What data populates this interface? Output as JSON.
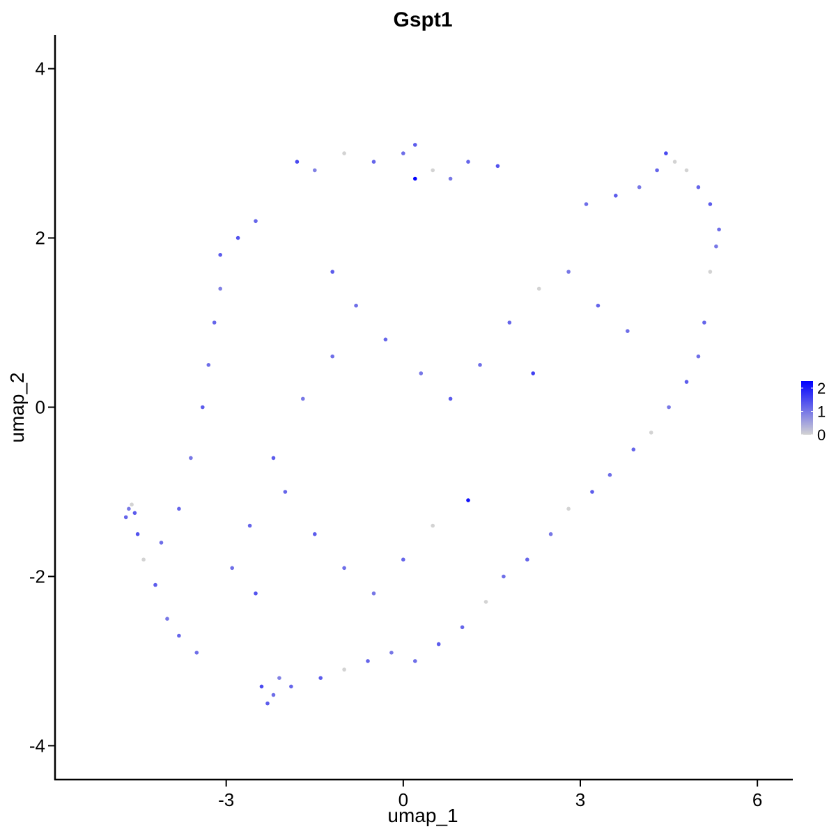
{
  "chart_data": {
    "type": "scatter",
    "title": "Gspt1",
    "xlabel": "umap_1",
    "ylabel": "umap_2",
    "xlim": [
      -5.9,
      6.6
    ],
    "ylim": [
      -4.4,
      4.4
    ],
    "xticks": [
      -3,
      0,
      3,
      6
    ],
    "yticks": [
      -4,
      -2,
      0,
      2,
      4
    ],
    "xtick_labels": [
      "-3",
      "0",
      "3",
      "6"
    ],
    "ytick_labels": [
      "-4",
      "-2",
      "0",
      "2",
      "4"
    ],
    "grid": false,
    "legend": {
      "placement": "right",
      "min": 0,
      "max": 2.3,
      "ticks": [
        0,
        1,
        2
      ],
      "tick_labels": [
        "0",
        "1",
        "2"
      ],
      "color_low": "#d3d3d3",
      "color_high": "#0000ff"
    },
    "points": [
      [
        0.2,
        2.7,
        2.3
      ],
      [
        1.1,
        -1.1,
        2.1
      ],
      [
        -4.7,
        -1.3,
        1.2
      ],
      [
        -4.65,
        -1.2,
        1.0
      ],
      [
        -4.6,
        -1.15,
        0.0
      ],
      [
        -4.55,
        -1.25,
        1.3
      ],
      [
        -4.5,
        -1.5,
        1.4
      ],
      [
        -4.4,
        -1.8,
        0.0
      ],
      [
        -2.3,
        -3.5,
        1.3
      ],
      [
        -2.2,
        -3.4,
        1.1
      ],
      [
        -2.4,
        -3.3,
        1.5
      ],
      [
        -2.1,
        -3.2,
        0.9
      ],
      [
        -1.9,
        -3.3,
        1.2
      ],
      [
        -3.1,
        1.8,
        1.3
      ],
      [
        -2.8,
        2.0,
        1.4
      ],
      [
        -2.5,
        2.2,
        1.2
      ],
      [
        -1.8,
        2.9,
        1.5
      ],
      [
        -1.5,
        2.8,
        0.9
      ],
      [
        -1.0,
        3.0,
        0.0
      ],
      [
        -0.5,
        2.9,
        1.2
      ],
      [
        0.0,
        3.0,
        1.1
      ],
      [
        0.2,
        3.1,
        1.3
      ],
      [
        0.5,
        2.8,
        0.0
      ],
      [
        0.8,
        2.7,
        1.0
      ],
      [
        1.1,
        2.9,
        1.2
      ],
      [
        1.6,
        2.85,
        1.4
      ],
      [
        3.1,
        2.4,
        1.1
      ],
      [
        3.6,
        2.5,
        1.3
      ],
      [
        4.0,
        2.6,
        1.0
      ],
      [
        4.3,
        2.8,
        1.2
      ],
      [
        4.45,
        3.0,
        1.5
      ],
      [
        4.6,
        2.9,
        0.0
      ],
      [
        4.8,
        2.8,
        0.0
      ],
      [
        5.0,
        2.6,
        1.2
      ],
      [
        5.2,
        2.4,
        1.3
      ],
      [
        5.35,
        2.1,
        1.1
      ],
      [
        5.3,
        1.9,
        1.0
      ],
      [
        5.2,
        1.6,
        0.0
      ],
      [
        5.1,
        1.0,
        1.2
      ],
      [
        5.0,
        0.6,
        1.1
      ],
      [
        4.8,
        0.3,
        1.3
      ],
      [
        4.5,
        0.0,
        1.0
      ],
      [
        4.2,
        -0.3,
        0.0
      ],
      [
        3.9,
        -0.5,
        1.2
      ],
      [
        3.5,
        -0.8,
        1.1
      ],
      [
        3.2,
        -1.0,
        1.3
      ],
      [
        2.8,
        -1.2,
        0.0
      ],
      [
        2.5,
        -1.5,
        1.0
      ],
      [
        2.1,
        -1.8,
        1.2
      ],
      [
        1.7,
        -2.0,
        1.1
      ],
      [
        1.4,
        -2.3,
        0.0
      ],
      [
        1.0,
        -2.6,
        1.2
      ],
      [
        0.6,
        -2.8,
        1.3
      ],
      [
        0.2,
        -3.0,
        1.1
      ],
      [
        -0.2,
        -2.9,
        1.0
      ],
      [
        -0.6,
        -3.0,
        1.2
      ],
      [
        -1.0,
        -3.1,
        0.0
      ],
      [
        -1.4,
        -3.2,
        1.3
      ],
      [
        -3.5,
        -2.9,
        1.1
      ],
      [
        -3.8,
        -2.7,
        1.2
      ],
      [
        -4.0,
        -2.5,
        1.0
      ],
      [
        -4.2,
        -2.1,
        1.3
      ],
      [
        -4.1,
        -1.6,
        1.1
      ],
      [
        -3.8,
        -1.2,
        1.2
      ],
      [
        -3.6,
        -0.6,
        1.0
      ],
      [
        -3.4,
        0.0,
        1.3
      ],
      [
        -3.3,
        0.5,
        1.1
      ],
      [
        -3.2,
        1.0,
        1.2
      ],
      [
        -3.1,
        1.4,
        0.9
      ],
      [
        -1.2,
        1.6,
        1.3
      ],
      [
        -0.8,
        1.2,
        1.1
      ],
      [
        -0.3,
        0.8,
        1.2
      ],
      [
        0.3,
        0.4,
        1.0
      ],
      [
        0.8,
        0.1,
        1.3
      ],
      [
        1.3,
        0.5,
        1.1
      ],
      [
        1.8,
        1.0,
        1.2
      ],
      [
        2.3,
        1.4,
        0.0
      ],
      [
        2.8,
        1.6,
        1.0
      ],
      [
        3.3,
        1.2,
        1.2
      ],
      [
        3.8,
        0.9,
        1.1
      ],
      [
        2.2,
        0.4,
        1.6
      ],
      [
        -2.0,
        -1.0,
        1.2
      ],
      [
        -1.5,
        -1.5,
        1.3
      ],
      [
        -1.0,
        -1.9,
        1.1
      ],
      [
        -0.5,
        -2.2,
        1.0
      ],
      [
        0.0,
        -1.8,
        1.2
      ],
      [
        0.5,
        -1.4,
        0.0
      ],
      [
        -2.5,
        -2.2,
        1.4
      ],
      [
        -2.9,
        -1.9,
        1.1
      ],
      [
        -2.6,
        -1.4,
        1.2
      ],
      [
        -2.2,
        -0.6,
        1.3
      ],
      [
        -1.7,
        0.1,
        1.0
      ],
      [
        -1.2,
        0.6,
        1.1
      ]
    ]
  }
}
